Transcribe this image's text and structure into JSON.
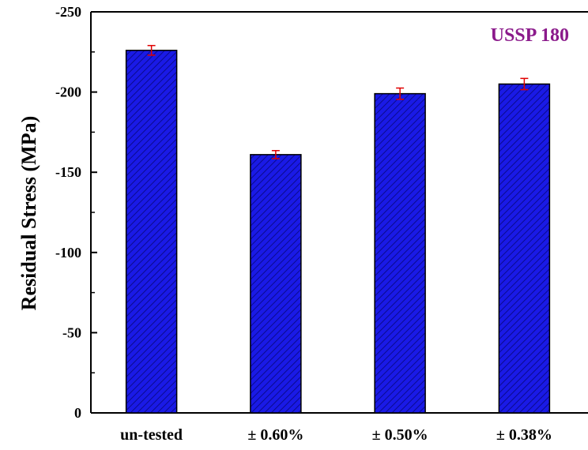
{
  "chart_data": {
    "type": "bar",
    "categories": [
      "un-tested",
      "± 0.60%",
      "± 0.50%",
      "± 0.38%"
    ],
    "values": [
      -226,
      -161,
      -199,
      -205
    ],
    "errors": [
      3,
      2.5,
      3.5,
      3.5
    ],
    "ylabel": "Residual Stress (MPa)",
    "xlabel": "",
    "ylim": [
      0,
      -250
    ],
    "yticks": [
      0,
      -50,
      -100,
      -150,
      -200,
      -250
    ],
    "ytick_labels": [
      "0",
      "-50",
      "-100",
      "-150",
      "-200",
      "-250"
    ],
    "annotation": "USSP 180",
    "colors": {
      "bar_fill": "#1a1ae6",
      "bar_hatch": "#0b0b8f",
      "error_bar": "#e00000",
      "annotation": "#8b1a8b"
    }
  }
}
